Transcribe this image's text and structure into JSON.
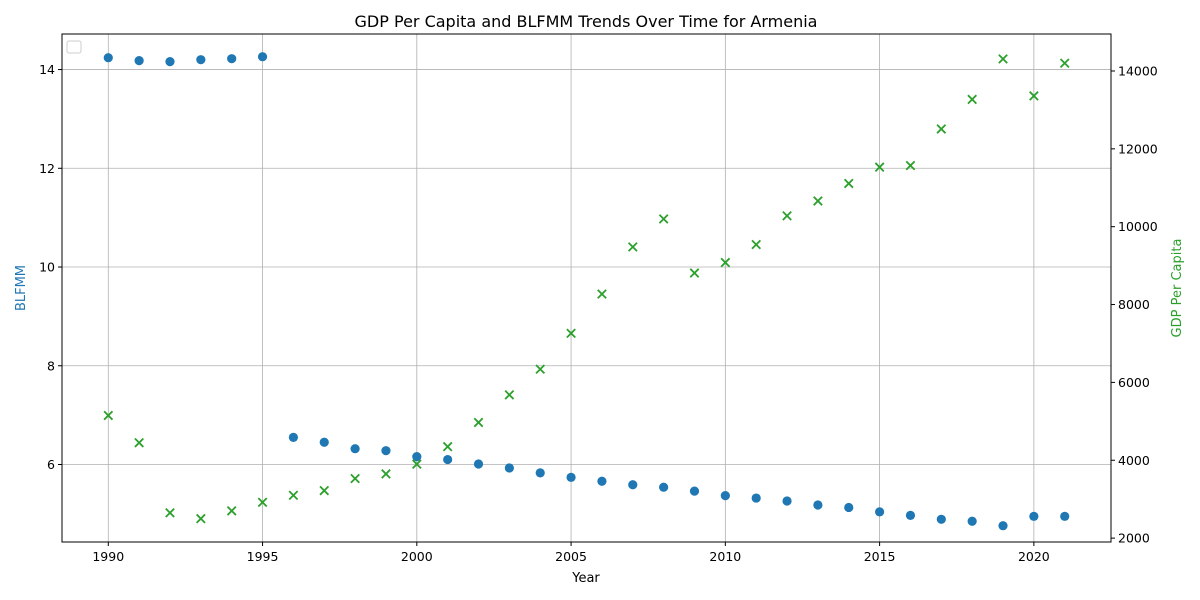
{
  "chart_data": {
    "type": "scatter",
    "title": "GDP Per Capita and BLFMM Trends Over Time for Armenia",
    "xlabel": "Year",
    "xlim": [
      1988.5,
      2022.5
    ],
    "x_ticks": [
      1990,
      1995,
      2000,
      2005,
      2010,
      2015,
      2020
    ],
    "grid": true,
    "legend": {
      "position": "top-left",
      "entries": []
    },
    "y_left": {
      "label": "BLFMM",
      "color": "#1f77b4",
      "ylim": [
        4.43,
        14.72
      ],
      "ticks": [
        6,
        8,
        10,
        12,
        14
      ]
    },
    "y_right": {
      "label": "GDP Per Capita",
      "color": "#2ca02c",
      "ylim": [
        1900,
        14950
      ],
      "ticks": [
        2000,
        4000,
        6000,
        8000,
        10000,
        12000,
        14000
      ]
    },
    "x": [
      1990,
      1991,
      1992,
      1993,
      1994,
      1995,
      1996,
      1997,
      1998,
      1999,
      2000,
      2001,
      2002,
      2003,
      2004,
      2005,
      2006,
      2007,
      2008,
      2009,
      2010,
      2011,
      2012,
      2013,
      2014,
      2015,
      2016,
      2017,
      2018,
      2019,
      2020,
      2021
    ],
    "series": [
      {
        "name": "BLFMM",
        "axis": "left",
        "marker": "circle",
        "color": "#1f77b4",
        "values": [
          14.24,
          14.18,
          14.16,
          14.2,
          14.22,
          14.26,
          null,
          6.45,
          6.32,
          6.28,
          6.16,
          6.1,
          6.01,
          5.93,
          5.83,
          5.74,
          5.66,
          5.59,
          5.54,
          5.46,
          5.37,
          5.32,
          5.26,
          5.18,
          5.13,
          5.04,
          4.97,
          4.89,
          4.85,
          4.76,
          4.95,
          4.95
        ]
      },
      {
        "name": "GDP Per Capita",
        "axis": "right",
        "marker": "x",
        "color": "#2ca02c",
        "values": [
          5150,
          4450,
          2650,
          2500,
          2700,
          2920,
          3100,
          3220,
          3530,
          3650,
          3900,
          4350,
          4970,
          5680,
          6340,
          7260,
          8270,
          9480,
          10200,
          8810,
          9080,
          9540,
          10280,
          10660,
          11110,
          11530,
          11570,
          12510,
          13270,
          14310,
          13360,
          14200
        ]
      }
    ],
    "extra_points": [
      {
        "series": "BLFMM",
        "x": 1996,
        "y": 6.55
      }
    ]
  }
}
